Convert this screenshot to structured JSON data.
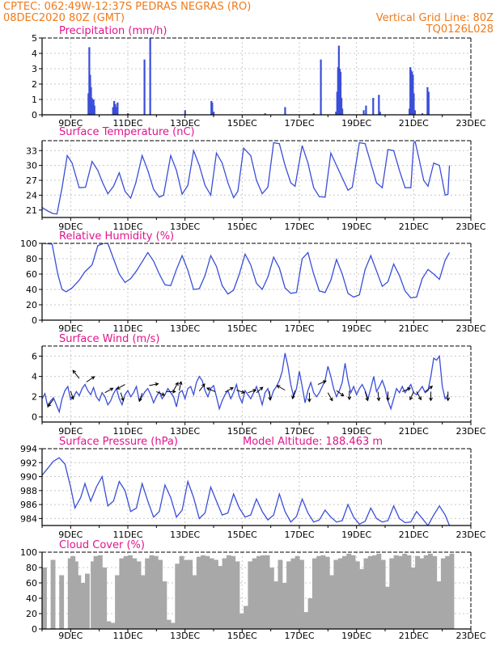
{
  "header": {
    "line1": "CPTEC:   062:49W-12:37S   PEDRAS NEGRAS (RO)",
    "date": "08DEC2020 80Z (GMT)",
    "grid": "Vertical Grid Line: 80Z",
    "code": "TQ0126L028"
  },
  "colors": {
    "orange": "#f07a1a",
    "magenta": "#e0148c",
    "series": "#3a4ed8",
    "cloud": "#a8a8a8",
    "grid": "#c8c8c8"
  },
  "x_ticks": [
    "9DEC",
    "11DEC",
    "13DEC",
    "15DEC",
    "17DEC",
    "19DEC",
    "21DEC",
    "23DEC"
  ],
  "chart_data": [
    {
      "type": "bar",
      "title": "Precipitation (mm/h)",
      "ylim": [
        0,
        5
      ],
      "yticks": [
        0,
        1,
        2,
        3,
        4,
        5
      ],
      "x_unit": "days since 08DEC 00Z",
      "bars": [
        [
          1.62,
          1.4
        ],
        [
          1.65,
          4.4
        ],
        [
          1.68,
          2.6
        ],
        [
          1.71,
          1.8
        ],
        [
          1.74,
          1.1
        ],
        [
          1.77,
          0.7
        ],
        [
          1.8,
          1.0
        ],
        [
          1.83,
          0.6
        ],
        [
          2.48,
          0.5
        ],
        [
          2.52,
          0.9
        ],
        [
          2.56,
          0.7
        ],
        [
          2.6,
          0.5
        ],
        [
          2.64,
          0.8
        ],
        [
          3.0,
          0.1
        ],
        [
          3.58,
          3.6
        ],
        [
          3.78,
          5.0
        ],
        [
          5.0,
          0.3
        ],
        [
          5.92,
          0.9
        ],
        [
          5.95,
          0.8
        ],
        [
          6.0,
          0.2
        ],
        [
          7.8,
          0.1
        ],
        [
          8.5,
          0.5
        ],
        [
          9.5,
          0.1
        ],
        [
          9.75,
          3.6
        ],
        [
          10.28,
          0.2
        ],
        [
          10.32,
          1.5
        ],
        [
          10.35,
          3.1
        ],
        [
          10.38,
          4.5
        ],
        [
          10.41,
          3.0
        ],
        [
          10.44,
          2.8
        ],
        [
          10.47,
          1.1
        ],
        [
          10.5,
          0.4
        ],
        [
          11.25,
          0.3
        ],
        [
          11.33,
          0.6
        ],
        [
          11.58,
          1.1
        ],
        [
          11.78,
          1.3
        ],
        [
          11.82,
          0.2
        ],
        [
          12.85,
          0.4
        ],
        [
          12.88,
          3.1
        ],
        [
          12.91,
          2.9
        ],
        [
          12.94,
          2.8
        ],
        [
          12.97,
          2.6
        ],
        [
          13.0,
          1.4
        ],
        [
          13.04,
          0.3
        ],
        [
          13.3,
          0.1
        ],
        [
          13.48,
          1.8
        ],
        [
          13.52,
          1.5
        ]
      ]
    },
    {
      "type": "line",
      "title": "Surface Temperature (nC)",
      "ylim": [
        19.5,
        35
      ],
      "yticks": [
        21,
        24,
        27,
        30,
        33
      ],
      "x_unit": "days since 08DEC 00Z",
      "x": [
        0,
        0.2,
        0.38,
        0.52,
        0.7,
        0.88,
        1.05,
        1.3,
        1.52,
        1.75,
        1.95,
        2.12,
        2.3,
        2.5,
        2.7,
        2.9,
        3.1,
        3.28,
        3.5,
        3.7,
        3.9,
        4.1,
        4.25,
        4.5,
        4.7,
        4.9,
        5.1,
        5.3,
        5.5,
        5.7,
        5.9,
        6.1,
        6.3,
        6.5,
        6.7,
        6.85,
        7.05,
        7.3,
        7.5,
        7.7,
        7.9,
        8.1,
        8.3,
        8.5,
        8.7,
        8.85,
        9.1,
        9.3,
        9.5,
        9.7,
        9.9,
        10.1,
        10.3,
        10.5,
        10.7,
        10.85,
        11.1,
        11.3,
        11.5,
        11.7,
        11.9,
        12.1,
        12.3,
        12.5,
        12.7,
        12.9,
        13.0,
        13.05,
        13.2,
        13.35,
        13.5,
        13.7,
        13.9,
        14.1,
        14.2,
        14.25
      ],
      "values": [
        21.5,
        20.8,
        20.3,
        20.2,
        25.5,
        32.0,
        30.5,
        25.5,
        25.6,
        30.8,
        29.0,
        26.5,
        24.3,
        25.8,
        28.5,
        24.8,
        23.4,
        26.5,
        32.0,
        29.0,
        25.2,
        23.6,
        24.0,
        32.0,
        29.0,
        24.2,
        26.0,
        33.0,
        30.0,
        26.0,
        24.0,
        32.5,
        30.5,
        26.5,
        23.5,
        24.8,
        33.5,
        32.0,
        27.0,
        24.3,
        25.6,
        34.6,
        34.4,
        30.0,
        26.5,
        25.8,
        34.0,
        30.5,
        25.5,
        23.7,
        23.6,
        32.5,
        30.0,
        27.5,
        25.0,
        25.6,
        34.6,
        34.4,
        30.5,
        26.5,
        25.5,
        33.2,
        33.0,
        29.0,
        25.5,
        25.5,
        34.5,
        34.8,
        31.0,
        27.0,
        25.8,
        30.5,
        30.0,
        24.0,
        24.2,
        30.0
      ]
    },
    {
      "type": "line",
      "title": "Relative Humidity (%)",
      "ylim": [
        0,
        100
      ],
      "yticks": [
        0,
        20,
        40,
        60,
        80,
        100
      ],
      "x_unit": "days since 08DEC 00Z",
      "x": [
        0,
        0.35,
        0.55,
        0.7,
        0.85,
        1.05,
        1.3,
        1.5,
        1.75,
        1.95,
        2.15,
        2.3,
        2.5,
        2.7,
        2.9,
        3.1,
        3.3,
        3.5,
        3.7,
        3.9,
        4.1,
        4.3,
        4.5,
        4.7,
        4.9,
        5.1,
        5.3,
        5.5,
        5.7,
        5.9,
        6.1,
        6.3,
        6.5,
        6.7,
        6.9,
        7.1,
        7.3,
        7.5,
        7.7,
        7.9,
        8.1,
        8.3,
        8.5,
        8.7,
        8.9,
        9.1,
        9.3,
        9.5,
        9.7,
        9.9,
        10.1,
        10.3,
        10.5,
        10.7,
        10.9,
        11.1,
        11.3,
        11.5,
        11.7,
        11.9,
        12.1,
        12.3,
        12.5,
        12.7,
        12.9,
        13.1,
        13.3,
        13.5,
        13.7,
        13.9,
        14.1,
        14.25
      ],
      "values": [
        100,
        99,
        60,
        40,
        37,
        42,
        52,
        63,
        72,
        97,
        100,
        100,
        80,
        60,
        49,
        54,
        64,
        76,
        88,
        77,
        60,
        46,
        45,
        66,
        84,
        65,
        40,
        41,
        58,
        84,
        70,
        45,
        34,
        39,
        60,
        86,
        72,
        48,
        40,
        56,
        82,
        68,
        42,
        35,
        36,
        80,
        88,
        60,
        38,
        36,
        52,
        79,
        60,
        35,
        30,
        33,
        66,
        84,
        64,
        44,
        50,
        73,
        58,
        38,
        29,
        30,
        54,
        66,
        60,
        53,
        78,
        88
      ]
    },
    {
      "type": "line",
      "title": "Surface Wind (m/s)",
      "ylim": [
        -0.5,
        7
      ],
      "yticks": [
        0,
        2,
        4,
        6
      ],
      "x_unit": "days since 08DEC 00Z",
      "x": [
        0,
        0.1,
        0.2,
        0.3,
        0.4,
        0.5,
        0.6,
        0.7,
        0.8,
        0.9,
        1.0,
        1.1,
        1.2,
        1.3,
        1.4,
        1.5,
        1.6,
        1.7,
        1.8,
        1.9,
        2.0,
        2.1,
        2.2,
        2.3,
        2.4,
        2.5,
        2.6,
        2.7,
        2.8,
        2.9,
        3.0,
        3.1,
        3.2,
        3.3,
        3.4,
        3.5,
        3.6,
        3.7,
        3.8,
        3.9,
        4.0,
        4.1,
        4.2,
        4.3,
        4.4,
        4.5,
        4.6,
        4.7,
        4.8,
        4.9,
        5.0,
        5.1,
        5.2,
        5.3,
        5.4,
        5.5,
        5.6,
        5.7,
        5.8,
        5.9,
        6.0,
        6.1,
        6.2,
        6.3,
        6.4,
        6.5,
        6.6,
        6.7,
        6.8,
        6.9,
        7.0,
        7.1,
        7.2,
        7.3,
        7.4,
        7.5,
        7.6,
        7.7,
        7.8,
        7.9,
        8.0,
        8.1,
        8.2,
        8.3,
        8.4,
        8.5,
        8.6,
        8.7,
        8.8,
        8.9,
        9.0,
        9.1,
        9.2,
        9.3,
        9.4,
        9.5,
        9.6,
        9.7,
        9.8,
        9.9,
        10.0,
        10.1,
        10.2,
        10.3,
        10.4,
        10.5,
        10.6,
        10.7,
        10.8,
        10.9,
        11.0,
        11.1,
        11.2,
        11.3,
        11.4,
        11.5,
        11.6,
        11.7,
        11.8,
        11.9,
        12.0,
        12.1,
        12.2,
        12.3,
        12.4,
        12.5,
        12.6,
        12.7,
        12.8,
        12.9,
        13.0,
        13.1,
        13.2,
        13.3,
        13.4,
        13.5,
        13.6,
        13.7,
        13.8,
        13.9,
        14.0,
        14.1,
        14.2
      ],
      "values": [
        1.8,
        2.3,
        1.0,
        1.6,
        1.9,
        1.2,
        0.5,
        1.8,
        2.6,
        3.0,
        1.7,
        2.0,
        2.5,
        2.1,
        2.8,
        3.2,
        2.6,
        2.2,
        2.9,
        2.0,
        1.6,
        2.4,
        2.0,
        1.2,
        1.6,
        2.3,
        2.8,
        1.8,
        1.2,
        2.2,
        2.6,
        2.0,
        2.4,
        3.0,
        1.6,
        2.0,
        2.5,
        2.8,
        2.2,
        1.4,
        2.0,
        2.5,
        1.8,
        2.2,
        2.8,
        2.4,
        2.0,
        1.0,
        2.4,
        2.6,
        1.8,
        2.8,
        3.0,
        2.2,
        3.4,
        4.0,
        3.6,
        2.6,
        2.0,
        2.8,
        3.1,
        2.0,
        0.8,
        1.6,
        2.2,
        2.6,
        1.8,
        2.4,
        3.2,
        2.0,
        1.4,
        2.6,
        2.2,
        1.8,
        2.4,
        3.0,
        2.2,
        1.2,
        2.4,
        2.8,
        1.8,
        2.6,
        3.0,
        3.6,
        4.5,
        6.3,
        5.0,
        3.2,
        2.0,
        2.8,
        4.5,
        3.0,
        1.4,
        2.6,
        3.4,
        2.4,
        2.0,
        2.4,
        3.0,
        3.6,
        5.0,
        4.0,
        2.8,
        2.0,
        2.6,
        3.4,
        5.3,
        3.6,
        2.4,
        3.0,
        2.2,
        2.8,
        3.2,
        2.6,
        1.8,
        2.8,
        4.0,
        2.5,
        3.0,
        3.6,
        2.8,
        1.6,
        0.8,
        1.8,
        2.8,
        2.4,
        3.0,
        2.4,
        2.8,
        3.2,
        2.4,
        2.2,
        2.6,
        3.0,
        2.4,
        2.6,
        4.0,
        5.8,
        5.6,
        6.0,
        3.0,
        1.8,
        2.2
      ],
      "arrows": [
        [
          0.4,
          1.75,
          -0.6,
          -0.8
        ],
        [
          1.0,
          2.55,
          0.3,
          -0.9
        ],
        [
          1.3,
          3.8,
          -0.7,
          0.9
        ],
        [
          1.55,
          3.45,
          0.9,
          0.6
        ],
        [
          2.2,
          2.4,
          0.9,
          0.5
        ],
        [
          2.75,
          2.4,
          0.3,
          -0.9
        ],
        [
          2.9,
          3.2,
          -0.9,
          -0.5
        ],
        [
          3.5,
          2.35,
          -0.3,
          -0.9
        ],
        [
          3.75,
          3.1,
          1.0,
          0.2
        ],
        [
          4.0,
          2.5,
          0.9,
          -0.4
        ],
        [
          4.35,
          2.5,
          1.0,
          0.0
        ],
        [
          4.6,
          2.6,
          0.5,
          0.9
        ],
        [
          4.8,
          2.6,
          0.2,
          1.0
        ],
        [
          5.5,
          2.55,
          0.6,
          0.8
        ],
        [
          6.05,
          2.5,
          -0.9,
          0.4
        ],
        [
          6.4,
          2.45,
          0.9,
          0.5
        ],
        [
          6.8,
          2.65,
          0.9,
          -0.3
        ],
        [
          7.2,
          2.4,
          0.9,
          0.3
        ],
        [
          7.5,
          2.4,
          0.7,
          0.6
        ],
        [
          7.95,
          2.55,
          0.1,
          -1.0
        ],
        [
          8.5,
          2.65,
          -0.9,
          0.5
        ],
        [
          8.85,
          2.6,
          -0.3,
          -0.9
        ],
        [
          9.35,
          2.4,
          0.0,
          -1.0
        ],
        [
          9.65,
          3.2,
          0.9,
          0.4
        ],
        [
          10.0,
          2.4,
          0.5,
          -0.9
        ],
        [
          10.3,
          2.6,
          0.8,
          -0.6
        ],
        [
          10.75,
          2.6,
          0.0,
          -1.0
        ],
        [
          11.3,
          2.5,
          0.3,
          -1.0
        ],
        [
          11.75,
          2.5,
          0.1,
          -1.0
        ],
        [
          12.1,
          2.5,
          0.0,
          -1.0
        ],
        [
          12.6,
          2.5,
          0.9,
          0.4
        ],
        [
          13.0,
          2.5,
          -0.4,
          -0.9
        ],
        [
          13.1,
          2.5,
          0.5,
          -0.9
        ],
        [
          13.4,
          2.5,
          0.8,
          0.6
        ],
        [
          13.6,
          2.5,
          0.0,
          -1.0
        ],
        [
          14.2,
          2.5,
          0.0,
          -1.0
        ]
      ]
    },
    {
      "type": "line",
      "title": "Surface Pressure (hPa)",
      "annotation": "Model Altitude: 188.463 m",
      "ylim": [
        983,
        994
      ],
      "yticks": [
        984,
        986,
        988,
        990,
        992,
        994
      ],
      "x_unit": "days since 08DEC 00Z",
      "x": [
        0,
        0.2,
        0.4,
        0.6,
        0.8,
        1.0,
        1.15,
        1.35,
        1.5,
        1.7,
        1.9,
        2.1,
        2.3,
        2.5,
        2.7,
        2.9,
        3.1,
        3.3,
        3.5,
        3.7,
        3.9,
        4.1,
        4.3,
        4.5,
        4.7,
        4.9,
        5.1,
        5.3,
        5.5,
        5.7,
        5.9,
        6.1,
        6.3,
        6.5,
        6.7,
        6.9,
        7.1,
        7.3,
        7.5,
        7.7,
        7.9,
        8.1,
        8.3,
        8.5,
        8.7,
        8.9,
        9.1,
        9.3,
        9.5,
        9.7,
        9.9,
        10.1,
        10.3,
        10.5,
        10.7,
        10.9,
        11.1,
        11.3,
        11.5,
        11.7,
        11.9,
        12.1,
        12.3,
        12.5,
        12.7,
        12.9,
        13.1,
        13.3,
        13.5,
        13.7,
        13.9,
        14.1,
        14.25
      ],
      "values": [
        990.2,
        991.2,
        992.2,
        992.7,
        991.8,
        988.5,
        985.5,
        987.0,
        989.0,
        986.5,
        988.5,
        990.0,
        985.8,
        986.5,
        989.3,
        988.0,
        985.0,
        985.5,
        989.0,
        986.5,
        984.2,
        985.0,
        988.8,
        987.0,
        984.2,
        985.2,
        989.3,
        987.0,
        984.0,
        984.8,
        988.5,
        986.5,
        984.5,
        984.8,
        987.5,
        985.5,
        984.2,
        984.5,
        986.8,
        985.0,
        983.8,
        984.5,
        987.5,
        985.0,
        983.5,
        984.3,
        986.8,
        984.8,
        983.5,
        983.8,
        985.2,
        984.2,
        983.5,
        983.7,
        986.0,
        984.2,
        983.2,
        983.6,
        985.5,
        984.0,
        983.5,
        983.7,
        985.8,
        984.0,
        983.4,
        983.5,
        985.0,
        984.0,
        983.0,
        984.5,
        985.8,
        984.5,
        983.0
      ]
    },
    {
      "type": "bar",
      "title": "Cloud Cover (%)",
      "ylim": [
        0,
        100
      ],
      "yticks": [
        0,
        20,
        40,
        60,
        80,
        100
      ],
      "x_unit": "days since 08DEC 00Z",
      "x": [
        0,
        0.3,
        0.6,
        0.9,
        1.0,
        1.1,
        1.2,
        1.35,
        1.5,
        1.7,
        1.8,
        1.95,
        2.1,
        2.25,
        2.4,
        2.55,
        2.7,
        2.85,
        3.0,
        3.15,
        3.3,
        3.45,
        3.6,
        3.75,
        3.9,
        4.05,
        4.2,
        4.35,
        4.5,
        4.65,
        4.8,
        4.95,
        5.1,
        5.25,
        5.4,
        5.55,
        5.7,
        5.85,
        6.0,
        6.15,
        6.3,
        6.45,
        6.6,
        6.75,
        6.9,
        7.05,
        7.2,
        7.35,
        7.5,
        7.65,
        7.8,
        7.95,
        8.1,
        8.25,
        8.4,
        8.55,
        8.7,
        8.85,
        9.0,
        9.15,
        9.3,
        9.45,
        9.6,
        9.75,
        9.9,
        10.05,
        10.2,
        10.35,
        10.5,
        10.65,
        10.8,
        10.95,
        11.1,
        11.25,
        11.4,
        11.55,
        11.7,
        11.85,
        12.0,
        12.15,
        12.3,
        12.45,
        12.6,
        12.75,
        12.9,
        13.05,
        13.2,
        13.35,
        13.5,
        13.65,
        13.8,
        13.95,
        14.1,
        14.25
      ],
      "values": [
        80,
        90,
        70,
        92,
        95,
        88,
        70,
        60,
        72,
        88,
        95,
        96,
        80,
        10,
        8,
        70,
        92,
        95,
        96,
        92,
        88,
        70,
        92,
        96,
        95,
        90,
        62,
        12,
        8,
        85,
        95,
        90,
        90,
        70,
        94,
        96,
        95,
        92,
        90,
        82,
        92,
        96,
        95,
        88,
        20,
        30,
        88,
        92,
        95,
        96,
        96,
        80,
        62,
        90,
        60,
        88,
        92,
        95,
        90,
        22,
        40,
        92,
        95,
        96,
        94,
        70,
        90,
        92,
        95,
        98,
        96,
        88,
        78,
        92,
        95,
        96,
        98,
        90,
        55,
        92,
        96,
        95,
        98,
        96,
        80,
        95,
        92,
        96,
        98,
        95,
        62,
        92,
        95,
        98
      ]
    }
  ]
}
